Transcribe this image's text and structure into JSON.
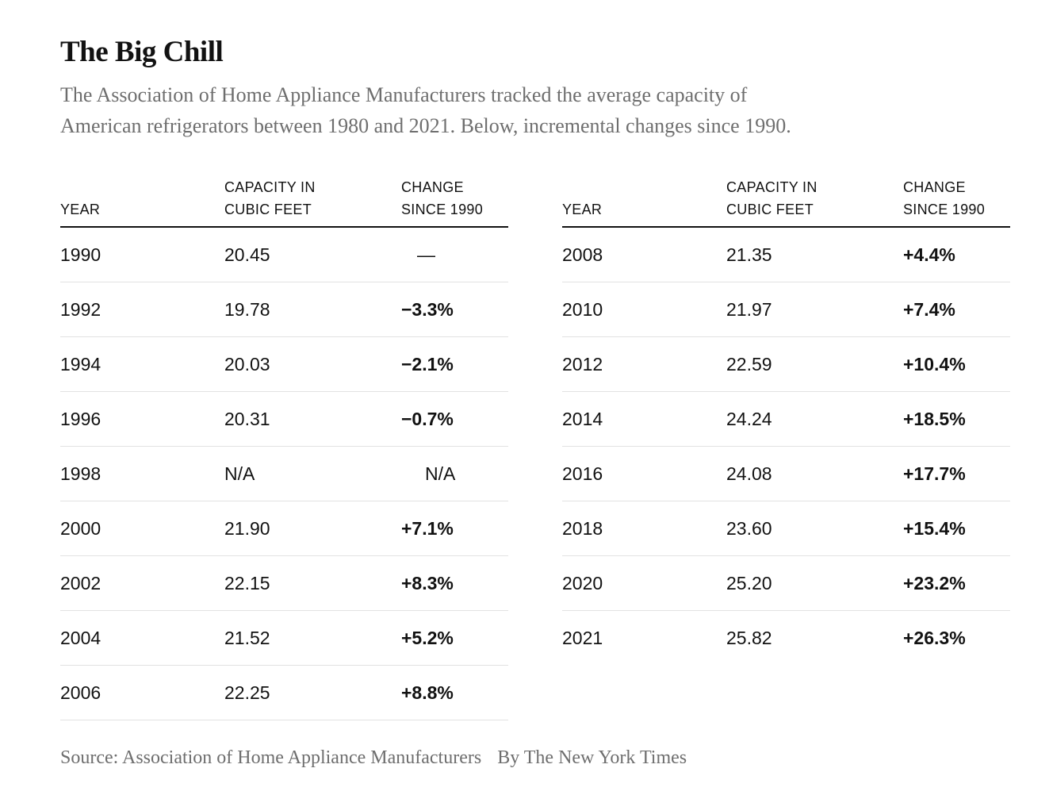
{
  "page": {
    "title": "The Big Chill",
    "subtitle_line1": "The Association of Home Appliance Manufacturers tracked the average capacity of",
    "subtitle_line2": "American refrigerators between 1980 and 2021. Below, incremental changes since 1990.",
    "source_label": "Source: Association of Home Appliance Manufacturers",
    "byline": "By The New York Times"
  },
  "headers": {
    "year": "YEAR",
    "capacity_line1": "CAPACITY IN",
    "capacity_line2": "CUBIC FEET",
    "change_line1": "CHANGE",
    "change_line2": "SINCE 1990"
  },
  "table": {
    "left_rows": [
      {
        "year": "1990",
        "capacity": "20.45",
        "change": "—"
      },
      {
        "year": "1992",
        "capacity": "19.78",
        "change": "−3.3%"
      },
      {
        "year": "1994",
        "capacity": "20.03",
        "change": "−2.1%"
      },
      {
        "year": "1996",
        "capacity": "20.31",
        "change": "−0.7%"
      },
      {
        "year": "1998",
        "capacity": "N/A",
        "change": "N/A"
      },
      {
        "year": "2000",
        "capacity": "21.90",
        "change": "+7.1%"
      },
      {
        "year": "2002",
        "capacity": "22.15",
        "change": "+8.3%"
      },
      {
        "year": "2004",
        "capacity": "21.52",
        "change": "+5.2%"
      },
      {
        "year": "2006",
        "capacity": "22.25",
        "change": "+8.8%"
      }
    ],
    "right_rows": [
      {
        "year": "2008",
        "capacity": "21.35",
        "change": "+4.4%"
      },
      {
        "year": "2010",
        "capacity": "21.97",
        "change": "+7.4%"
      },
      {
        "year": "2012",
        "capacity": "22.59",
        "change": "+10.4%"
      },
      {
        "year": "2014",
        "capacity": "24.24",
        "change": "+18.5%"
      },
      {
        "year": "2016",
        "capacity": "24.08",
        "change": "+17.7%"
      },
      {
        "year": "2018",
        "capacity": "23.60",
        "change": "+15.4%"
      },
      {
        "year": "2020",
        "capacity": "25.20",
        "change": "+23.2%"
      },
      {
        "year": "2021",
        "capacity": "25.82",
        "change": "+26.3%"
      }
    ]
  },
  "chart_data": {
    "type": "table",
    "title": "The Big Chill",
    "subtitle": "The Association of Home Appliance Manufacturers tracked the average capacity of American refrigerators between 1980 and 2021. Below, incremental changes since 1990.",
    "columns": [
      "Year",
      "Capacity in cubic feet",
      "Change since 1990 (%)"
    ],
    "years": [
      1990,
      1992,
      1994,
      1996,
      1998,
      2000,
      2002,
      2004,
      2006,
      2008,
      2010,
      2012,
      2014,
      2016,
      2018,
      2020,
      2021
    ],
    "capacity_cubic_feet": [
      20.45,
      19.78,
      20.03,
      20.31,
      null,
      21.9,
      22.15,
      21.52,
      22.25,
      21.35,
      21.97,
      22.59,
      24.24,
      24.08,
      23.6,
      25.2,
      25.82
    ],
    "change_since_1990_pct": [
      null,
      -3.3,
      -2.1,
      -0.7,
      null,
      7.1,
      8.3,
      5.2,
      8.8,
      4.4,
      7.4,
      10.4,
      18.5,
      17.7,
      15.4,
      23.2,
      26.3
    ],
    "source": "Association of Home Appliance Manufacturers",
    "byline": "By The New York Times"
  },
  "colors": {
    "text": "#121212",
    "muted": "#6e6e6e",
    "rule": "#121212",
    "separator": "#e2e2e2",
    "bg": "#ffffff"
  }
}
